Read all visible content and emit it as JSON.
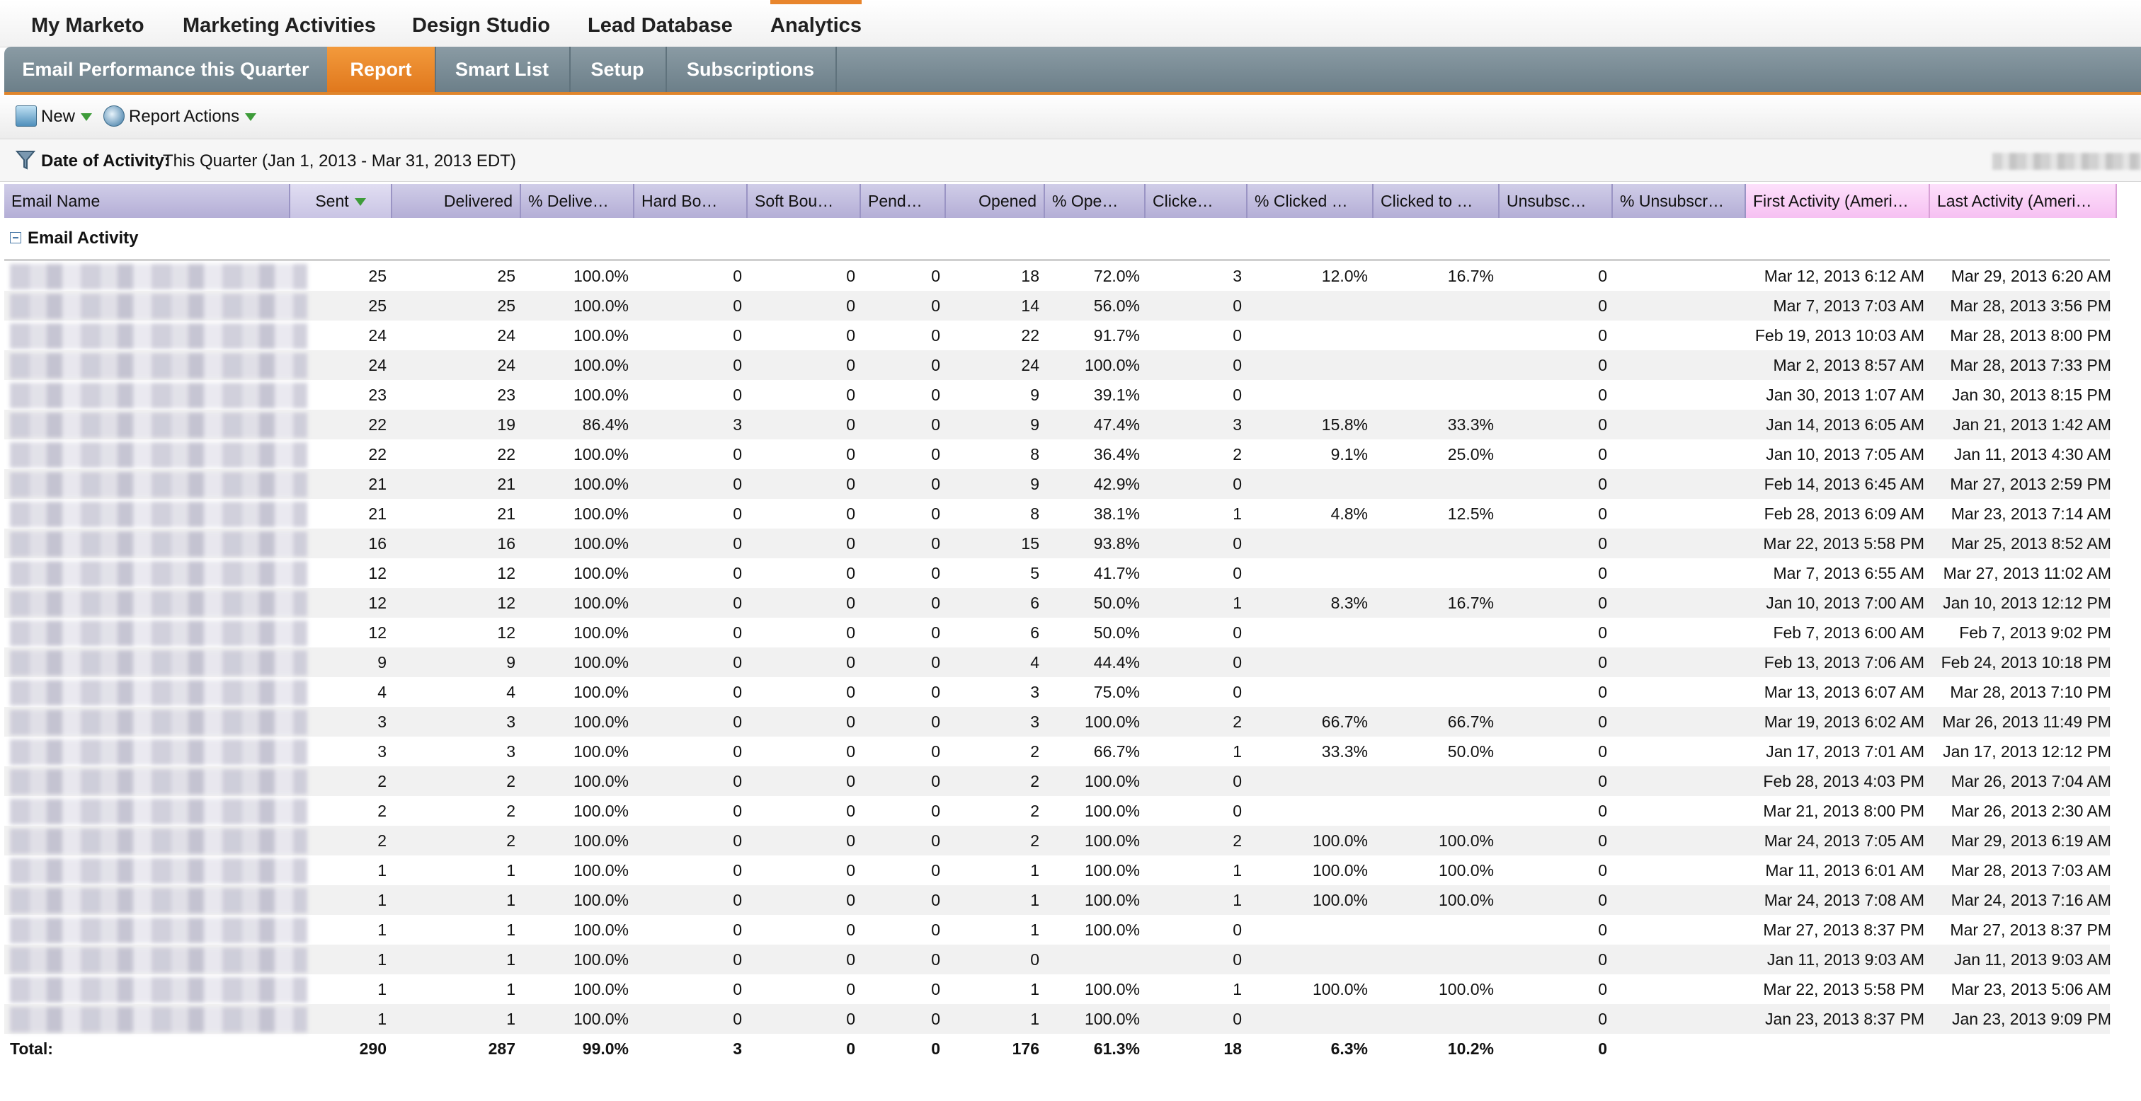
{
  "top_nav": {
    "items": [
      {
        "label": "My Marketo",
        "active": false
      },
      {
        "label": "Marketing Activities",
        "active": false
      },
      {
        "label": "Design Studio",
        "active": false
      },
      {
        "label": "Lead Database",
        "active": false
      },
      {
        "label": "Analytics",
        "active": true
      }
    ]
  },
  "sub_tabs": {
    "items": [
      {
        "label": "Email Performance this Quarter",
        "active": false
      },
      {
        "label": "Report",
        "active": true
      },
      {
        "label": "Smart List",
        "active": false
      },
      {
        "label": "Setup",
        "active": false
      },
      {
        "label": "Subscriptions",
        "active": false
      }
    ]
  },
  "toolbar": {
    "new_label": "New",
    "report_actions_label": "Report Actions"
  },
  "filter": {
    "label": "Date of Activity:",
    "value": "This Quarter (Jan 1, 2013 - Mar 31, 2013 EDT)"
  },
  "colors": {
    "accent": "#e0781d",
    "header_purple": "#b4aed6",
    "header_pink": "#f6c0f2",
    "sort_arrow": "#3e9c3a"
  },
  "grid": {
    "columns": [
      "Email Name",
      "Sent",
      "Delivered",
      "% Delive…",
      "Hard Bo…",
      "Soft Bou…",
      "Pend…",
      "Opened",
      "% Ope…",
      "Clicke…",
      "% Clicked …",
      "Clicked to …",
      "Unsubsc…",
      "% Unsubscr…",
      "First Activity (Ameri…",
      "Last Activity (Ameri…"
    ],
    "sorted_column": "Sent",
    "group_label": "Email Activity",
    "rows": [
      [
        "25",
        "25",
        "100.0%",
        "0",
        "0",
        "0",
        "18",
        "72.0%",
        "3",
        "12.0%",
        "16.7%",
        "0",
        "",
        "Mar 12, 2013 6:12 AM",
        "Mar 29, 2013 6:20 AM"
      ],
      [
        "25",
        "25",
        "100.0%",
        "0",
        "0",
        "0",
        "14",
        "56.0%",
        "0",
        "",
        "",
        "0",
        "",
        "Mar 7, 2013 7:03 AM",
        "Mar 28, 2013 3:56 PM"
      ],
      [
        "24",
        "24",
        "100.0%",
        "0",
        "0",
        "0",
        "22",
        "91.7%",
        "0",
        "",
        "",
        "0",
        "",
        "Feb 19, 2013 10:03 AM",
        "Mar 28, 2013 8:00 PM"
      ],
      [
        "24",
        "24",
        "100.0%",
        "0",
        "0",
        "0",
        "24",
        "100.0%",
        "0",
        "",
        "",
        "0",
        "",
        "Mar 2, 2013 8:57 AM",
        "Mar 28, 2013 7:33 PM"
      ],
      [
        "23",
        "23",
        "100.0%",
        "0",
        "0",
        "0",
        "9",
        "39.1%",
        "0",
        "",
        "",
        "0",
        "",
        "Jan 30, 2013 1:07 AM",
        "Jan 30, 2013 8:15 PM"
      ],
      [
        "22",
        "19",
        "86.4%",
        "3",
        "0",
        "0",
        "9",
        "47.4%",
        "3",
        "15.8%",
        "33.3%",
        "0",
        "",
        "Jan 14, 2013 6:05 AM",
        "Jan 21, 2013 1:42 AM"
      ],
      [
        "22",
        "22",
        "100.0%",
        "0",
        "0",
        "0",
        "8",
        "36.4%",
        "2",
        "9.1%",
        "25.0%",
        "0",
        "",
        "Jan 10, 2013 7:05 AM",
        "Jan 11, 2013 4:30 AM"
      ],
      [
        "21",
        "21",
        "100.0%",
        "0",
        "0",
        "0",
        "9",
        "42.9%",
        "0",
        "",
        "",
        "0",
        "",
        "Feb 14, 2013 6:45 AM",
        "Mar 27, 2013 2:59 PM"
      ],
      [
        "21",
        "21",
        "100.0%",
        "0",
        "0",
        "0",
        "8",
        "38.1%",
        "1",
        "4.8%",
        "12.5%",
        "0",
        "",
        "Feb 28, 2013 6:09 AM",
        "Mar 23, 2013 7:14 AM"
      ],
      [
        "16",
        "16",
        "100.0%",
        "0",
        "0",
        "0",
        "15",
        "93.8%",
        "0",
        "",
        "",
        "0",
        "",
        "Mar 22, 2013 5:58 PM",
        "Mar 25, 2013 8:52 AM"
      ],
      [
        "12",
        "12",
        "100.0%",
        "0",
        "0",
        "0",
        "5",
        "41.7%",
        "0",
        "",
        "",
        "0",
        "",
        "Mar 7, 2013 6:55 AM",
        "Mar 27, 2013 11:02 AM"
      ],
      [
        "12",
        "12",
        "100.0%",
        "0",
        "0",
        "0",
        "6",
        "50.0%",
        "1",
        "8.3%",
        "16.7%",
        "0",
        "",
        "Jan 10, 2013 7:00 AM",
        "Jan 10, 2013 12:12 PM"
      ],
      [
        "12",
        "12",
        "100.0%",
        "0",
        "0",
        "0",
        "6",
        "50.0%",
        "0",
        "",
        "",
        "0",
        "",
        "Feb 7, 2013 6:00 AM",
        "Feb 7, 2013 9:02 PM"
      ],
      [
        "9",
        "9",
        "100.0%",
        "0",
        "0",
        "0",
        "4",
        "44.4%",
        "0",
        "",
        "",
        "0",
        "",
        "Feb 13, 2013 7:06 AM",
        "Feb 24, 2013 10:18 PM"
      ],
      [
        "4",
        "4",
        "100.0%",
        "0",
        "0",
        "0",
        "3",
        "75.0%",
        "0",
        "",
        "",
        "0",
        "",
        "Mar 13, 2013 6:07 AM",
        "Mar 28, 2013 7:10 PM"
      ],
      [
        "3",
        "3",
        "100.0%",
        "0",
        "0",
        "0",
        "3",
        "100.0%",
        "2",
        "66.7%",
        "66.7%",
        "0",
        "",
        "Mar 19, 2013 6:02 AM",
        "Mar 26, 2013 11:49 PM"
      ],
      [
        "3",
        "3",
        "100.0%",
        "0",
        "0",
        "0",
        "2",
        "66.7%",
        "1",
        "33.3%",
        "50.0%",
        "0",
        "",
        "Jan 17, 2013 7:01 AM",
        "Jan 17, 2013 12:12 PM"
      ],
      [
        "2",
        "2",
        "100.0%",
        "0",
        "0",
        "0",
        "2",
        "100.0%",
        "0",
        "",
        "",
        "0",
        "",
        "Feb 28, 2013 4:03 PM",
        "Mar 26, 2013 7:04 AM"
      ],
      [
        "2",
        "2",
        "100.0%",
        "0",
        "0",
        "0",
        "2",
        "100.0%",
        "0",
        "",
        "",
        "0",
        "",
        "Mar 21, 2013 8:00 PM",
        "Mar 26, 2013 2:30 AM"
      ],
      [
        "2",
        "2",
        "100.0%",
        "0",
        "0",
        "0",
        "2",
        "100.0%",
        "2",
        "100.0%",
        "100.0%",
        "0",
        "",
        "Mar 24, 2013 7:05 AM",
        "Mar 29, 2013 6:19 AM"
      ],
      [
        "1",
        "1",
        "100.0%",
        "0",
        "0",
        "0",
        "1",
        "100.0%",
        "1",
        "100.0%",
        "100.0%",
        "0",
        "",
        "Mar 11, 2013 6:01 AM",
        "Mar 28, 2013 7:03 AM"
      ],
      [
        "1",
        "1",
        "100.0%",
        "0",
        "0",
        "0",
        "1",
        "100.0%",
        "1",
        "100.0%",
        "100.0%",
        "0",
        "",
        "Mar 24, 2013 7:08 AM",
        "Mar 24, 2013 7:16 AM"
      ],
      [
        "1",
        "1",
        "100.0%",
        "0",
        "0",
        "0",
        "1",
        "100.0%",
        "0",
        "",
        "",
        "0",
        "",
        "Mar 27, 2013 8:37 PM",
        "Mar 27, 2013 8:37 PM"
      ],
      [
        "1",
        "1",
        "100.0%",
        "0",
        "0",
        "0",
        "0",
        "",
        "0",
        "",
        "",
        "0",
        "",
        "Jan 11, 2013 9:03 AM",
        "Jan 11, 2013 9:03 AM"
      ],
      [
        "1",
        "1",
        "100.0%",
        "0",
        "0",
        "0",
        "1",
        "100.0%",
        "1",
        "100.0%",
        "100.0%",
        "0",
        "",
        "Mar 22, 2013 5:58 PM",
        "Mar 23, 2013 5:06 AM"
      ],
      [
        "1",
        "1",
        "100.0%",
        "0",
        "0",
        "0",
        "1",
        "100.0%",
        "0",
        "",
        "",
        "0",
        "",
        "Jan 23, 2013 8:37 PM",
        "Jan 23, 2013 9:09 PM"
      ]
    ],
    "totals": {
      "label": "Total:",
      "values": [
        "290",
        "287",
        "99.0%",
        "3",
        "0",
        "0",
        "176",
        "61.3%",
        "18",
        "6.3%",
        "10.2%",
        "0",
        "",
        "",
        ""
      ]
    }
  }
}
